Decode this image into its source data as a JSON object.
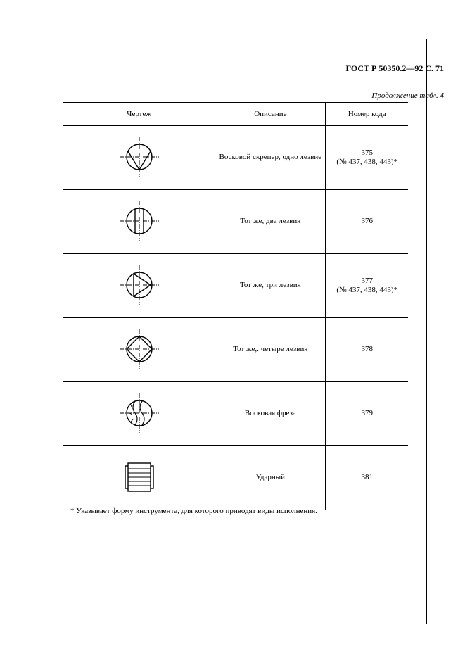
{
  "doc_header": "ГОСТ Р 50350.2—92 С. 71",
  "table_caption": "Продолжение табл. 4",
  "columns": {
    "drawing": "Чертеж",
    "description": "Описание",
    "code": "Номер кода"
  },
  "rows": [
    {
      "figure": "scraper1",
      "description": "Восковой скрепер, одно лезвие",
      "code": "375\n(№ 437, 438, 443)*"
    },
    {
      "figure": "scraper2",
      "description": "Тот же, два лезвия",
      "code": "376"
    },
    {
      "figure": "scraper3",
      "description": "Тот же, три лезвия",
      "code": "377\n(№ 437, 438, 443)*"
    },
    {
      "figure": "scraper4",
      "description": "Тот же,. четыре лезвия",
      "code": "378"
    },
    {
      "figure": "waxmill",
      "description": "Восковая фреза",
      "code": "379"
    },
    {
      "figure": "impact",
      "description": "Ударный",
      "code": "381"
    }
  ],
  "footnote": "* Указывает форму инструмента, для которого приводят виды исполнения.",
  "style": {
    "stroke": "#000000",
    "stroke_width": 1.2,
    "background": "#ffffff",
    "font_family": "Times New Roman",
    "header_fontsize": 12,
    "body_fontsize": 11
  }
}
